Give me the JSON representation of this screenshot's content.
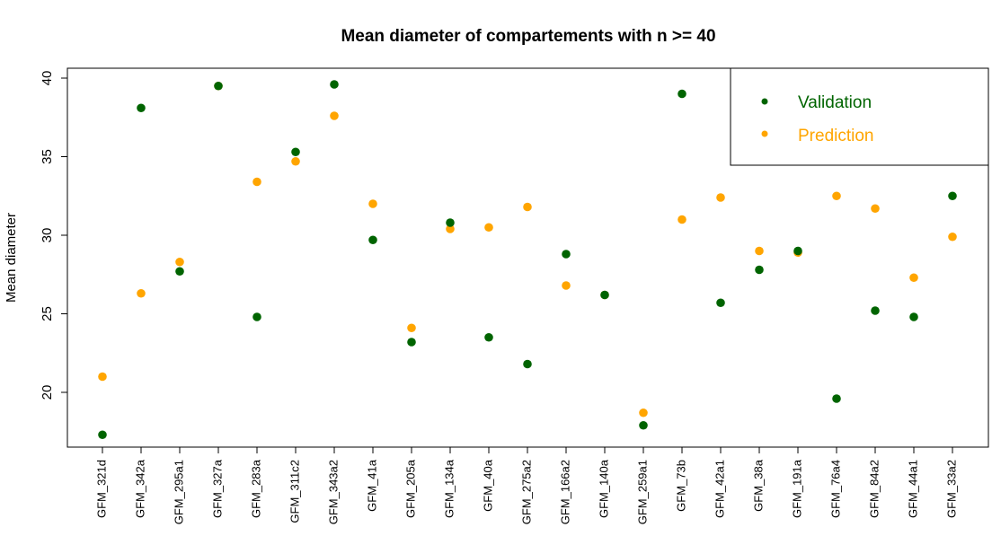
{
  "chart_data": {
    "type": "scatter",
    "title": "Mean diameter of compartements with n >= 40",
    "xlabel": "",
    "ylabel": "Mean diameter",
    "ylim": [
      16.2,
      40.6
    ],
    "yticks": [
      20,
      25,
      30,
      35,
      40
    ],
    "grid": false,
    "legend_position": "top-right",
    "categories": [
      "GFM_321d",
      "GFM_342a",
      "GFM_295a1",
      "GFM_327a",
      "GFM_283a",
      "GFM_311c2",
      "GFM_343a2",
      "GFM_41a",
      "GFM_205a",
      "GFM_134a",
      "GFM_40a",
      "GFM_275a2",
      "GFM_166a2",
      "GFM_140a",
      "GFM_259a1",
      "GFM_73b",
      "GFM_42a1",
      "GFM_38a",
      "GFM_191a",
      "GFM_76a4",
      "GFM_84a2",
      "GFM_44a1",
      "GFM_33a2"
    ],
    "series": [
      {
        "name": "Validation",
        "color": "#006400",
        "values": [
          17.3,
          38.1,
          27.7,
          39.5,
          24.8,
          35.3,
          39.6,
          29.7,
          23.2,
          30.8,
          23.5,
          21.8,
          28.8,
          26.2,
          17.9,
          39.0,
          25.7,
          27.8,
          29.0,
          19.6,
          25.2,
          24.8,
          32.5
        ]
      },
      {
        "name": "Prediction",
        "color": "#FFA500",
        "values": [
          21.0,
          26.3,
          28.3,
          39.5,
          33.4,
          34.7,
          37.6,
          32.0,
          24.1,
          30.4,
          30.5,
          31.8,
          26.8,
          26.2,
          18.7,
          31.0,
          32.4,
          29.0,
          28.9,
          32.5,
          31.7,
          27.3,
          29.9
        ]
      }
    ]
  }
}
